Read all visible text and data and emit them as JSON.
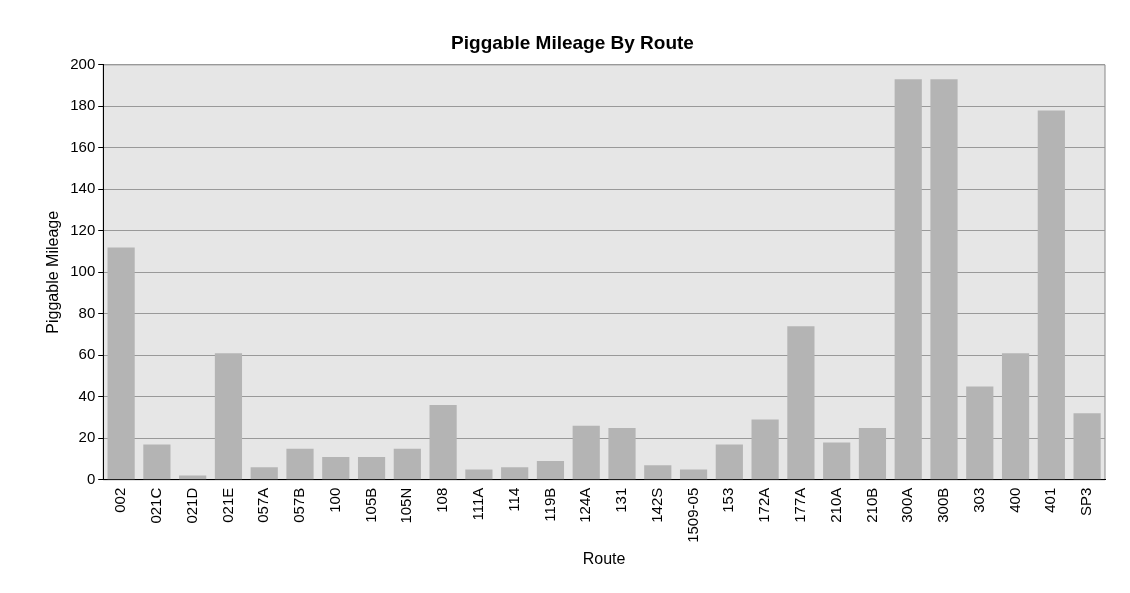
{
  "chart_data": {
    "type": "bar",
    "title": "Piggable Mileage By Route",
    "xlabel": "Route",
    "ylabel": "Piggable Mileage",
    "categories": [
      "002",
      "021C",
      "021D",
      "021E",
      "057A",
      "057B",
      "100",
      "105B",
      "105N",
      "108",
      "111A",
      "114",
      "119B",
      "124A",
      "131",
      "142S",
      "1509-05",
      "153",
      "172A",
      "177A",
      "210A",
      "210B",
      "300A",
      "300B",
      "303",
      "400",
      "401",
      "SP3"
    ],
    "values": [
      112,
      17,
      2,
      61,
      6,
      15,
      11,
      11,
      15,
      36,
      5,
      6,
      9,
      26,
      25,
      7,
      5,
      17,
      29,
      74,
      18,
      25,
      193,
      193,
      45,
      61,
      178,
      32
    ],
    "color": "#b4b4b4",
    "ylim": [
      0,
      200
    ],
    "yticks": [
      0,
      20,
      40,
      60,
      80,
      100,
      120,
      140,
      160,
      180,
      200
    ],
    "grid": "y",
    "legend": false
  }
}
